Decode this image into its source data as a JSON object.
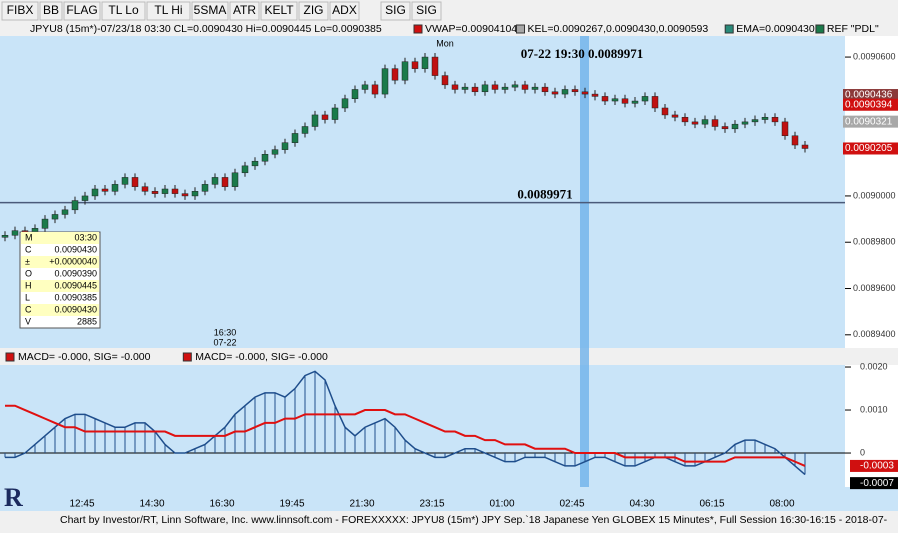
{
  "toolbar": [
    "FIBX",
    "BB",
    "FLAG",
    "TL Lo",
    "TL Hi",
    "5SMA",
    "ATR",
    "KELT",
    "ZIG",
    "ADX",
    "SIG",
    "SIG"
  ],
  "header": "JPYU8 (15m*)-07/23/18 03:30 CL=0.0090430 Hi=0.0090445 Lo=0.0090385",
  "studies": [
    "VWAP=0.00904104",
    "KEL=0.0090267,0.0090430,0.0090593",
    "EMA=0.0090430",
    "REF \"PDL\""
  ],
  "chart_data": {
    "type": "candlestick",
    "day_label": "Mon",
    "annotation": "07-22 19:30  0.0089971",
    "reference": {
      "value": 0.0089971,
      "label": "0.0089971"
    },
    "session_label": [
      "16:30",
      "07-22"
    ],
    "ylim": [
      0.0089343,
      0.0090691
    ],
    "yticks": [
      {
        "value": 0.00906,
        "label": "0.0090600"
      },
      {
        "value": 0.009,
        "label": "0.0090000"
      },
      {
        "value": 0.00898,
        "label": "0.0089800"
      },
      {
        "value": 0.00896,
        "label": "0.0089600"
      },
      {
        "value": 0.00894,
        "label": "0.0089400"
      }
    ],
    "markers": [
      {
        "value": 0.0090436,
        "color": "#8b3a3a"
      },
      {
        "value": 0.0090394,
        "color": "#d01010"
      },
      {
        "value": 0.0090321,
        "color": "#a8a8a8"
      },
      {
        "value": 0.0090205,
        "color": "#d01010"
      }
    ],
    "close": [
      0.008983,
      0.008985,
      0.008984,
      0.008986,
      0.00899,
      0.008992,
      0.008994,
      0.008998,
      0.009,
      0.009003,
      0.009002,
      0.009005,
      0.009008,
      0.009004,
      0.009002,
      0.009001,
      0.009003,
      0.009001,
      0.009,
      0.009002,
      0.009005,
      0.009008,
      0.009004,
      0.00901,
      0.009013,
      0.009015,
      0.009018,
      0.00902,
      0.009023,
      0.009027,
      0.00903,
      0.009035,
      0.009033,
      0.009038,
      0.009042,
      0.009046,
      0.009048,
      0.009044,
      0.009055,
      0.00905,
      0.009058,
      0.009055,
      0.00906,
      0.009052,
      0.009048,
      0.009046,
      0.009047,
      0.009045,
      0.009048,
      0.009046,
      0.009047,
      0.009048,
      0.009046,
      0.009047,
      0.009045,
      0.009044,
      0.009046,
      0.009045,
      0.009044,
      0.009043,
      0.009041,
      0.009042,
      0.00904,
      0.009041,
      0.009043,
      0.009038,
      0.009035,
      0.009034,
      0.009032,
      0.009031,
      0.009033,
      0.00903,
      0.009029,
      0.009031,
      0.009032,
      0.009033,
      0.009034,
      0.009032,
      0.009026,
      0.009022,
      0.0090205
    ],
    "info": [
      [
        "M",
        "03:30"
      ],
      [
        "C",
        "0.0090430"
      ],
      [
        "±",
        "+0.0000040"
      ],
      [
        "O",
        "0.0090390"
      ],
      [
        "H",
        "0.0090445"
      ],
      [
        "L",
        "0.0090385"
      ],
      [
        "C",
        "0.0090430"
      ],
      [
        "V",
        "2885"
      ]
    ],
    "time_labels": [
      "12:45",
      "14:30",
      "16:30",
      "19:45",
      "21:30",
      "23:15",
      "01:00",
      "02:45",
      "04:30",
      "06:15",
      "08:00"
    ],
    "footer": "Chart by Investor/RT, Linn Software, Inc. www.linnsoft.com - FOREXXXXX: JPYU8 (15m*) JPY Sep.`18 Japanese Yen GLOBEX 15 Minutes*, Full Session 16:30-16:15 - 2018-07-"
  },
  "macd": {
    "type": "histogram",
    "headers": [
      "MACD=  -0.000, SIG=  -0.000",
      "MACD=  -0.000, SIG=  -0.000"
    ],
    "ylim": [
      -0.00079,
      0.002047
    ],
    "yticks": [
      {
        "value": 0.002,
        "label": "0.0020"
      },
      {
        "value": 0.001,
        "label": "0.0010"
      },
      0
    ],
    "markers": [
      {
        "value": -0.0003,
        "color": "#d01010"
      },
      {
        "value": -0.0007,
        "color": "#000000"
      }
    ],
    "series": [
      {
        "name": "MACD",
        "color": "#1f4e8c",
        "values": [
          -0.0001,
          -0.0001,
          0,
          0.0002,
          0.0004,
          0.0006,
          0.0008,
          0.0009,
          0.0009,
          0.0008,
          0.0007,
          0.0006,
          0.0006,
          0.0007,
          0.0007,
          0.0005,
          0.0002,
          0,
          0,
          0.0001,
          0.0002,
          0.0004,
          0.0006,
          0.0009,
          0.0011,
          0.0013,
          0.0014,
          0.0014,
          0.0013,
          0.0015,
          0.0018,
          0.0019,
          0.0017,
          0.0011,
          0.0006,
          0.0004,
          0.0006,
          0.0007,
          0.0008,
          0.0006,
          0.0003,
          0.0001,
          0,
          -0.0001,
          -0.0001,
          0,
          0.0001,
          0.0001,
          0,
          -0.0001,
          -0.0002,
          -0.0002,
          -0.0001,
          -0.0001,
          -0.0001,
          -0.0002,
          -0.0003,
          -0.0003,
          -0.0002,
          -0.0001,
          -0.0001,
          -0.0002,
          -0.0003,
          -0.0003,
          -0.0002,
          -0.0001,
          -0.0001,
          -0.0002,
          -0.0003,
          -0.0003,
          -0.0002,
          -0.0001,
          0,
          0.0002,
          0.0003,
          0.0003,
          0.0002,
          0.0001,
          -0.0001,
          -0.0003,
          -0.0005
        ]
      },
      {
        "name": "SIG",
        "color": "#e01010",
        "values": [
          0.0011,
          0.0011,
          0.001,
          0.0009,
          0.0008,
          0.0007,
          0.0006,
          0.0006,
          0.0005,
          0.0005,
          0.0005,
          0.0005,
          0.0005,
          0.0005,
          0.0005,
          0.0005,
          0.0005,
          0.0004,
          0.0004,
          0.0004,
          0.0004,
          0.0004,
          0.0004,
          0.0005,
          0.0005,
          0.0006,
          0.0007,
          0.0007,
          0.0008,
          0.0008,
          0.0009,
          0.0009,
          0.0009,
          0.0009,
          0.0009,
          0.0009,
          0.001,
          0.001,
          0.001,
          0.0009,
          0.0009,
          0.0008,
          0.0007,
          0.0006,
          0.0005,
          0.0005,
          0.0004,
          0.0004,
          0.0003,
          0.0003,
          0.0002,
          0.0002,
          0.0002,
          0.0001,
          0.0001,
          0.0001,
          0.0001,
          0,
          0,
          0,
          0,
          0,
          -0.0001,
          -0.0001,
          -0.0001,
          -0.0001,
          -0.0001,
          -0.0001,
          -0.0002,
          -0.0002,
          -0.0002,
          -0.0002,
          -0.0002,
          -0.0001,
          -0.0001,
          -0.0001,
          -0.0001,
          -0.0001,
          -0.0001,
          -0.0002,
          -0.0003
        ]
      }
    ]
  }
}
